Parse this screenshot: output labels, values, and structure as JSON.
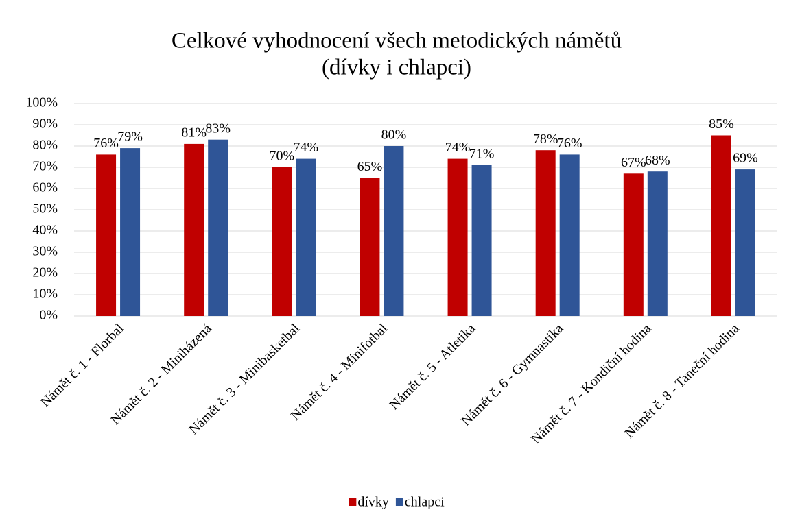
{
  "chart_data": {
    "type": "bar",
    "title": "Celkové vyhodnocení všech metodických námětů",
    "subtitle": "(dívky i chlapci)",
    "categories": [
      "Námět č. 1 - Florbal",
      "Námět č. 2 - Miniházená",
      "Námět č. 3 - Minibasketbal",
      "Námět č. 4 - Minifotbal",
      "Námět č. 5 - Atletika",
      "Námět č. 6 - Gymnastika",
      "Námět č. 7 - Kondiční hodina",
      "Námět č. 8 - Taneční hodina"
    ],
    "series": [
      {
        "name": "dívky",
        "color": "#c00000",
        "values": [
          76,
          81,
          70,
          65,
          74,
          78,
          67,
          85
        ],
        "value_labels": [
          "76%",
          "81%",
          "70%",
          "65%",
          "74%",
          "78%",
          "67%",
          "85%"
        ]
      },
      {
        "name": "chlapci",
        "color": "#2f5597",
        "values": [
          79,
          83,
          74,
          80,
          71,
          76,
          68,
          69
        ],
        "value_labels": [
          "79%",
          "83%",
          "74%",
          "80%",
          "71%",
          "76%",
          "68%",
          "69%"
        ]
      }
    ],
    "ylim": [
      0,
      100
    ],
    "yticks": [
      {
        "value": 0,
        "label": "0%"
      },
      {
        "value": 10,
        "label": "10%"
      },
      {
        "value": 20,
        "label": "20%"
      },
      {
        "value": 30,
        "label": "30%"
      },
      {
        "value": 40,
        "label": "40%"
      },
      {
        "value": 50,
        "label": "50%"
      },
      {
        "value": 60,
        "label": "60%"
      },
      {
        "value": 70,
        "label": "70%"
      },
      {
        "value": 80,
        "label": "80%"
      },
      {
        "value": 90,
        "label": "90%"
      },
      {
        "value": 100,
        "label": "100%"
      }
    ],
    "grid": true,
    "legend": "bottom"
  }
}
